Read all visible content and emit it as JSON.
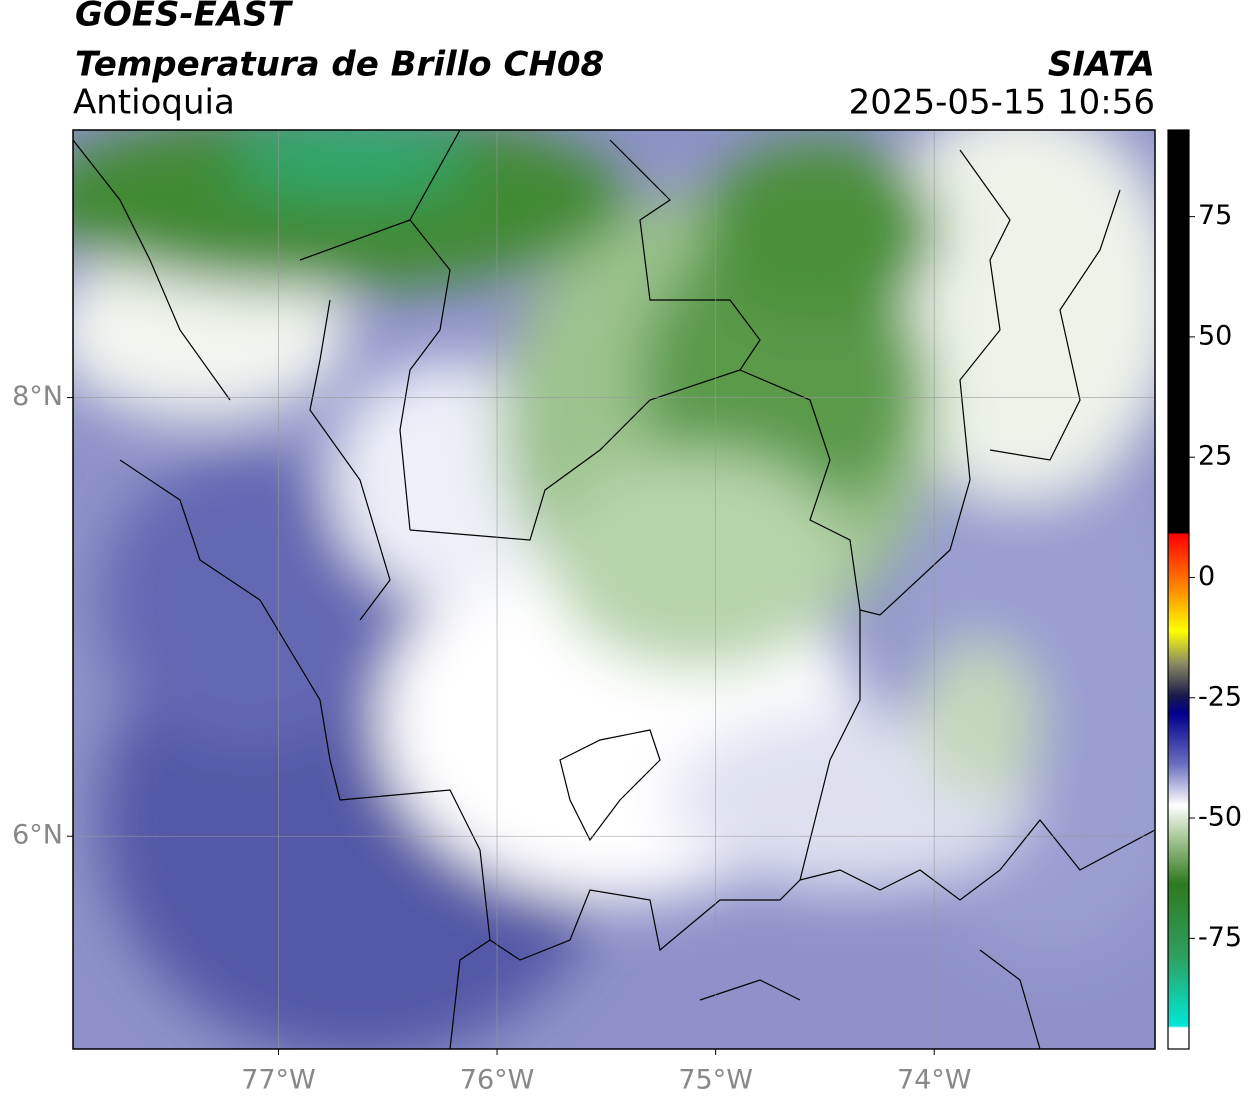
{
  "header": {
    "title": "GOES-EAST",
    "subtitle": "Temperatura de Brillo CH08",
    "region": "Antioquia",
    "source": "SIATA",
    "datetime": "2025-05-15 10:56"
  },
  "map": {
    "type": "map",
    "xlim": [
      -77.94,
      -72.99
    ],
    "ylim": [
      5.03,
      9.22
    ],
    "xticks": [
      {
        "value": -77,
        "label": "77°W"
      },
      {
        "value": -76,
        "label": "76°W"
      },
      {
        "value": -75,
        "label": "75°W"
      },
      {
        "value": -74,
        "label": "74°W"
      }
    ],
    "yticks": [
      {
        "value": 6,
        "label": "6°N"
      },
      {
        "value": 8,
        "label": "8°N"
      }
    ],
    "grid": true
  },
  "colorbar": {
    "lim": [
      -98,
      93
    ],
    "ticks": [
      75,
      50,
      25,
      0,
      -25,
      -50,
      -75
    ]
  }
}
